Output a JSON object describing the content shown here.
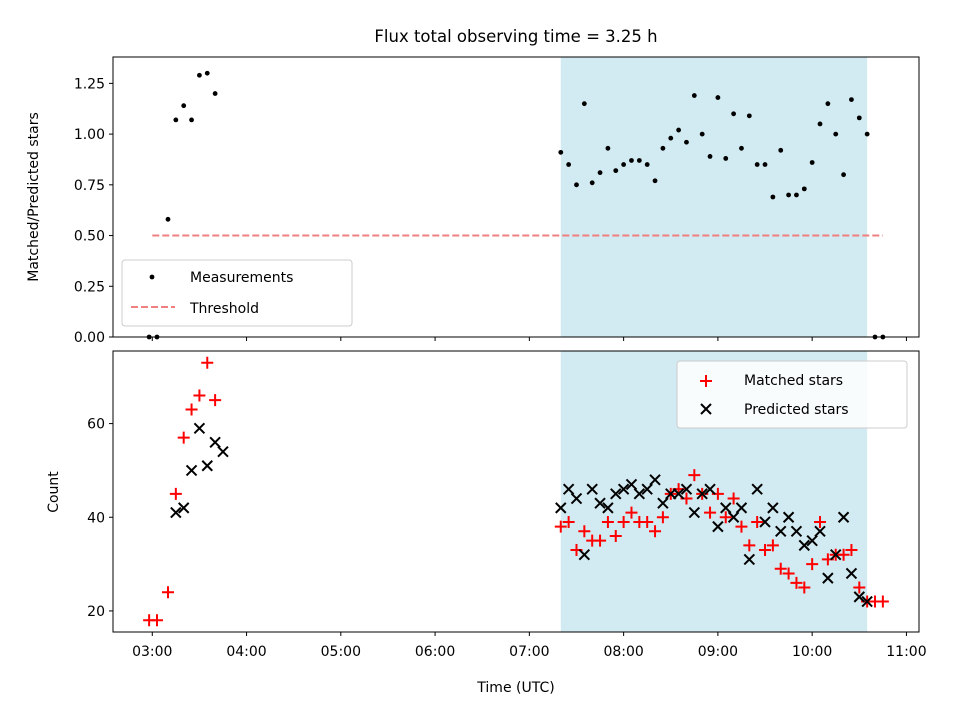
{
  "chart_data": [
    {
      "type": "scatter",
      "title": "Flux total observing time = 3.25 h",
      "xlabel": "",
      "ylabel": "Matched/Predicted stars",
      "ylim": [
        0,
        1.38
      ],
      "xlim": [
        "02:35",
        "11:08"
      ],
      "xticks": [
        "03:00",
        "04:00",
        "05:00",
        "06:00",
        "07:00",
        "08:00",
        "09:00",
        "10:00",
        "11:00"
      ],
      "yticks": [
        "0.00",
        "0.25",
        "0.50",
        "0.75",
        "1.00",
        "1.25"
      ],
      "shaded_span": [
        "07:20",
        "10:35"
      ],
      "grid": false,
      "legend_placement": "lower-left",
      "legend": [
        "Measurements",
        "Threshold"
      ],
      "colors": {
        "measurements": "#000000",
        "threshold": "#f08080",
        "span": "#add8e6"
      },
      "threshold": {
        "name": "Threshold",
        "value": 0.5,
        "x": [
          "03:00",
          "10:45"
        ]
      },
      "series": [
        {
          "name": "Measurements",
          "x": [
            "02:58",
            "03:03",
            "03:10",
            "03:15",
            "03:20",
            "03:25",
            "03:30",
            "03:35",
            "03:40",
            "07:20",
            "07:25",
            "07:30",
            "07:35",
            "07:40",
            "07:45",
            "07:50",
            "07:55",
            "08:00",
            "08:05",
            "08:10",
            "08:15",
            "08:20",
            "08:25",
            "08:30",
            "08:35",
            "08:40",
            "08:45",
            "08:50",
            "08:55",
            "09:00",
            "09:05",
            "09:10",
            "09:15",
            "09:20",
            "09:25",
            "09:30",
            "09:35",
            "09:40",
            "09:45",
            "09:50",
            "09:55",
            "10:00",
            "10:05",
            "10:10",
            "10:15",
            "10:20",
            "10:25",
            "10:30",
            "10:35",
            "10:40",
            "10:45"
          ],
          "y": [
            0.0,
            0.0,
            0.58,
            1.07,
            1.14,
            1.07,
            1.29,
            1.3,
            1.2,
            0.91,
            0.85,
            0.75,
            1.15,
            0.76,
            0.81,
            0.93,
            0.82,
            0.85,
            0.87,
            0.87,
            0.85,
            0.77,
            0.93,
            0.98,
            1.02,
            0.96,
            1.19,
            1.0,
            0.89,
            1.18,
            0.88,
            1.1,
            0.93,
            1.09,
            0.85,
            0.85,
            0.69,
            0.92,
            0.7,
            0.7,
            0.73,
            0.86,
            1.05,
            1.15,
            1.0,
            0.8,
            1.17,
            1.08,
            1.0,
            0.0,
            0.0
          ]
        }
      ]
    },
    {
      "type": "scatter",
      "title": "",
      "xlabel": "Time (UTC)",
      "ylabel": "Count",
      "ylim": [
        15.5,
        75.5
      ],
      "xlim": [
        "02:35",
        "11:08"
      ],
      "xticks": [
        "03:00",
        "04:00",
        "05:00",
        "06:00",
        "07:00",
        "08:00",
        "09:00",
        "10:00",
        "11:00"
      ],
      "yticks": [
        "20",
        "40",
        "60"
      ],
      "shaded_span": [
        "07:20",
        "10:35"
      ],
      "grid": false,
      "legend_placement": "upper-right",
      "legend": [
        "Matched stars",
        "Predicted stars"
      ],
      "colors": {
        "matched": "#ff0000",
        "predicted": "#000000",
        "span": "#add8e6"
      },
      "series": [
        {
          "name": "Matched stars",
          "x": [
            "02:58",
            "03:03",
            "03:10",
            "03:15",
            "03:20",
            "03:25",
            "03:30",
            "03:35",
            "03:40",
            "07:20",
            "07:25",
            "07:30",
            "07:35",
            "07:40",
            "07:45",
            "07:50",
            "07:55",
            "08:00",
            "08:05",
            "08:10",
            "08:15",
            "08:20",
            "08:25",
            "08:30",
            "08:35",
            "08:40",
            "08:45",
            "08:50",
            "08:55",
            "09:00",
            "09:05",
            "09:10",
            "09:15",
            "09:20",
            "09:25",
            "09:30",
            "09:35",
            "09:40",
            "09:45",
            "09:50",
            "09:55",
            "10:00",
            "10:05",
            "10:10",
            "10:15",
            "10:20",
            "10:25",
            "10:30",
            "10:35",
            "10:40",
            "10:45"
          ],
          "y": [
            18,
            18,
            24,
            45,
            57,
            63,
            66,
            73,
            65,
            38,
            39,
            33,
            37,
            35,
            35,
            39,
            36,
            39,
            41,
            39,
            39,
            37,
            40,
            45,
            46,
            44,
            49,
            45,
            41,
            45,
            40,
            44,
            38,
            34,
            39,
            33,
            34,
            29,
            28,
            26,
            25,
            30,
            39,
            31,
            32,
            32,
            33,
            25,
            22,
            22,
            22
          ]
        },
        {
          "name": "Predicted stars",
          "x": [
            "03:15",
            "03:20",
            "03:25",
            "03:30",
            "03:35",
            "03:40",
            "03:45",
            "07:20",
            "07:25",
            "07:30",
            "07:35",
            "07:40",
            "07:45",
            "07:50",
            "07:55",
            "08:00",
            "08:05",
            "08:10",
            "08:15",
            "08:20",
            "08:25",
            "08:30",
            "08:35",
            "08:40",
            "08:45",
            "08:50",
            "08:55",
            "09:00",
            "09:05",
            "09:10",
            "09:15",
            "09:20",
            "09:25",
            "09:30",
            "09:35",
            "09:40",
            "09:45",
            "09:50",
            "09:55",
            "10:00",
            "10:05",
            "10:10",
            "10:15",
            "10:20",
            "10:25",
            "10:30",
            "10:35"
          ],
          "y": [
            41,
            42,
            50,
            59,
            51,
            56,
            54,
            42,
            46,
            44,
            32,
            46,
            43,
            42,
            45,
            46,
            47,
            45,
            46,
            48,
            43,
            45,
            45,
            46,
            41,
            45,
            46,
            38,
            42,
            40,
            42,
            31,
            46,
            39,
            42,
            37,
            40,
            37,
            34,
            35,
            37,
            27,
            32,
            40,
            28,
            23,
            22
          ]
        }
      ]
    }
  ]
}
